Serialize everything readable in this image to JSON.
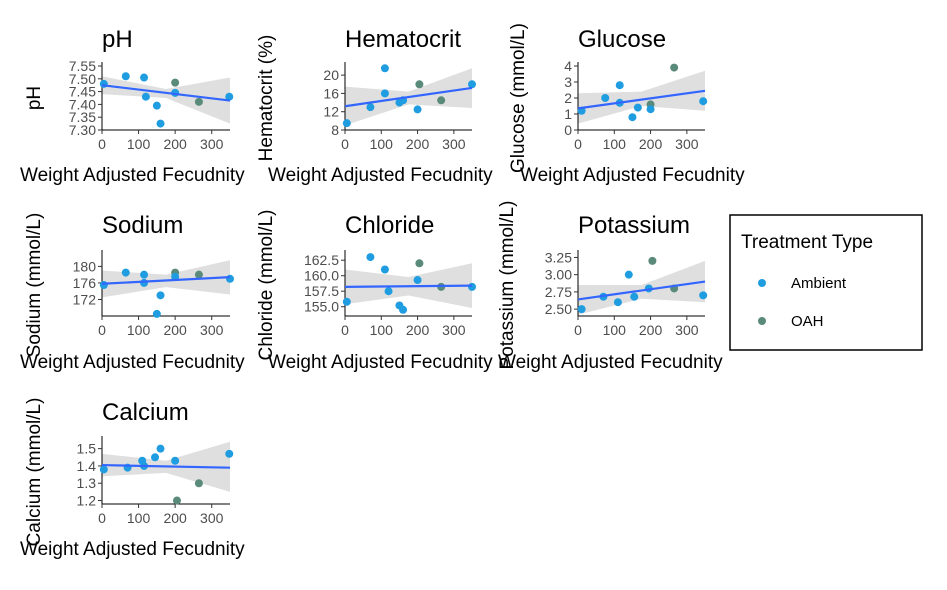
{
  "colors": {
    "Ambient": "#1f9de0",
    "OAH": "#5a8a7a",
    "fit": "#3366ff",
    "ci": "#d9d9d9"
  },
  "legend": {
    "title": "Treatment Type",
    "items": [
      {
        "label": "Ambient",
        "color": "#1f9de0"
      },
      {
        "label": "OAH",
        "color": "#5a8a7a"
      }
    ]
  },
  "chart_data": [
    {
      "type": "scatter",
      "title": "pH",
      "xlabel": "Weight Adjusted Fecudnity",
      "ylabel": "pH",
      "xlim": [
        0,
        350
      ],
      "xticks": [
        0,
        100,
        200,
        300
      ],
      "xtick_labels": [
        "0",
        "100",
        "200",
        "300"
      ],
      "ylim": [
        7.3,
        7.55
      ],
      "yticks": [
        7.3,
        7.35,
        7.4,
        7.45,
        7.5,
        7.55
      ],
      "ytick_labels": [
        "7.30",
        "7.35",
        "7.40",
        "7.45",
        "7.50",
        "7.55"
      ],
      "points": [
        {
          "x": 5,
          "y": 7.48,
          "group": "Ambient"
        },
        {
          "x": 65,
          "y": 7.51,
          "group": "Ambient"
        },
        {
          "x": 115,
          "y": 7.505,
          "group": "Ambient"
        },
        {
          "x": 120,
          "y": 7.43,
          "group": "Ambient"
        },
        {
          "x": 150,
          "y": 7.395,
          "group": "Ambient"
        },
        {
          "x": 160,
          "y": 7.325,
          "group": "Ambient"
        },
        {
          "x": 200,
          "y": 7.485,
          "group": "OAH"
        },
        {
          "x": 200,
          "y": 7.445,
          "group": "Ambient"
        },
        {
          "x": 265,
          "y": 7.41,
          "group": "OAH"
        },
        {
          "x": 348,
          "y": 7.43,
          "group": "Ambient"
        }
      ],
      "fit": [
        [
          0,
          7.475
        ],
        [
          350,
          7.415
        ]
      ],
      "ci_upper": [
        [
          0,
          7.51
        ],
        [
          175,
          7.46
        ],
        [
          350,
          7.505
        ]
      ],
      "ci_lower": [
        [
          0,
          7.44
        ],
        [
          175,
          7.425
        ],
        [
          350,
          7.325
        ]
      ]
    },
    {
      "type": "scatter",
      "title": "Hematocrit",
      "xlabel": "Weight Adjusted Fecudnity",
      "ylabel": "Hematocrit (%)",
      "xlim": [
        0,
        350
      ],
      "xticks": [
        0,
        100,
        200,
        300
      ],
      "xtick_labels": [
        "0",
        "100",
        "200",
        "300"
      ],
      "ylim": [
        8,
        22
      ],
      "yticks": [
        8,
        12,
        16,
        20
      ],
      "ytick_labels": [
        "8",
        "12",
        "16",
        "20"
      ],
      "points": [
        {
          "x": 5,
          "y": 9.5,
          "group": "Ambient"
        },
        {
          "x": 70,
          "y": 13,
          "group": "Ambient"
        },
        {
          "x": 110,
          "y": 21.5,
          "group": "Ambient"
        },
        {
          "x": 110,
          "y": 16,
          "group": "Ambient"
        },
        {
          "x": 150,
          "y": 14,
          "group": "Ambient"
        },
        {
          "x": 160,
          "y": 14.5,
          "group": "Ambient"
        },
        {
          "x": 205,
          "y": 18,
          "group": "OAH"
        },
        {
          "x": 200,
          "y": 12.5,
          "group": "Ambient"
        },
        {
          "x": 265,
          "y": 14.5,
          "group": "OAH"
        },
        {
          "x": 350,
          "y": 18,
          "group": "Ambient"
        }
      ],
      "fit": [
        [
          0,
          13.2
        ],
        [
          350,
          17.2
        ]
      ],
      "ci_upper": [
        [
          0,
          17.5
        ],
        [
          175,
          16.4
        ],
        [
          350,
          21.5
        ]
      ],
      "ci_lower": [
        [
          0,
          9
        ],
        [
          175,
          13.6
        ],
        [
          350,
          12.8
        ]
      ]
    },
    {
      "type": "scatter",
      "title": "Glucose",
      "xlabel": "Weight Adjusted Fecudnity",
      "ylabel": "Glucose (mmol/L)",
      "xlim": [
        0,
        350
      ],
      "xticks": [
        0,
        100,
        200,
        300
      ],
      "xtick_labels": [
        "0",
        "100",
        "200",
        "300"
      ],
      "ylim": [
        0,
        4
      ],
      "yticks": [
        0,
        1,
        2,
        3,
        4
      ],
      "ytick_labels": [
        "0",
        "1",
        "2",
        "3",
        "4"
      ],
      "points": [
        {
          "x": 10,
          "y": 1.2,
          "group": "Ambient"
        },
        {
          "x": 75,
          "y": 2.0,
          "group": "Ambient"
        },
        {
          "x": 115,
          "y": 2.8,
          "group": "Ambient"
        },
        {
          "x": 115,
          "y": 1.7,
          "group": "Ambient"
        },
        {
          "x": 150,
          "y": 0.8,
          "group": "Ambient"
        },
        {
          "x": 165,
          "y": 1.4,
          "group": "Ambient"
        },
        {
          "x": 200,
          "y": 1.6,
          "group": "OAH"
        },
        {
          "x": 200,
          "y": 1.3,
          "group": "Ambient"
        },
        {
          "x": 265,
          "y": 3.9,
          "group": "OAH"
        },
        {
          "x": 345,
          "y": 1.8,
          "group": "Ambient"
        }
      ],
      "fit": [
        [
          0,
          1.35
        ],
        [
          350,
          2.45
        ]
      ],
      "ci_upper": [
        [
          0,
          2.3
        ],
        [
          175,
          2.4
        ],
        [
          350,
          3.7
        ]
      ],
      "ci_lower": [
        [
          0,
          0.4
        ],
        [
          175,
          1.5
        ],
        [
          350,
          1.2
        ]
      ]
    },
    {
      "type": "scatter",
      "title": "Sodium",
      "xlabel": "Weight Adjusted Fecudnity",
      "ylabel": "Sodium (mmol/L)",
      "xlim": [
        0,
        350
      ],
      "xticks": [
        0,
        100,
        200,
        300
      ],
      "xtick_labels": [
        "0",
        "100",
        "200",
        "300"
      ],
      "ylim": [
        168,
        183
      ],
      "yticks": [
        172,
        176,
        180
      ],
      "ytick_labels": [
        "172",
        "176",
        "180"
      ],
      "points": [
        {
          "x": 5,
          "y": 175.5,
          "group": "Ambient"
        },
        {
          "x": 65,
          "y": 178.5,
          "group": "Ambient"
        },
        {
          "x": 115,
          "y": 178,
          "group": "Ambient"
        },
        {
          "x": 115,
          "y": 176,
          "group": "Ambient"
        },
        {
          "x": 150,
          "y": 168.5,
          "group": "Ambient"
        },
        {
          "x": 160,
          "y": 173,
          "group": "Ambient"
        },
        {
          "x": 200,
          "y": 178.5,
          "group": "OAH"
        },
        {
          "x": 200,
          "y": 177.5,
          "group": "Ambient"
        },
        {
          "x": 265,
          "y": 178,
          "group": "OAH"
        },
        {
          "x": 350,
          "y": 177,
          "group": "Ambient"
        }
      ],
      "fit": [
        [
          0,
          175.8
        ],
        [
          350,
          177.4
        ]
      ],
      "ci_upper": [
        [
          0,
          179
        ],
        [
          175,
          178
        ],
        [
          350,
          181.5
        ]
      ],
      "ci_lower": [
        [
          0,
          172.5
        ],
        [
          175,
          175
        ],
        [
          350,
          173.2
        ]
      ]
    },
    {
      "type": "scatter",
      "title": "Chloride",
      "xlabel": "Weight Adjusted Fecudnity",
      "ylabel": "Chloride (mmol/L)",
      "xlim": [
        0,
        350
      ],
      "xticks": [
        0,
        100,
        200,
        300
      ],
      "xtick_labels": [
        "0",
        "100",
        "200",
        "300"
      ],
      "ylim": [
        153.5,
        163.5
      ],
      "yticks": [
        155.0,
        157.5,
        160.0,
        162.5
      ],
      "ytick_labels": [
        "155.0",
        "157.5",
        "160.0",
        "162.5"
      ],
      "points": [
        {
          "x": 5,
          "y": 155.8,
          "group": "Ambient"
        },
        {
          "x": 70,
          "y": 163,
          "group": "Ambient"
        },
        {
          "x": 110,
          "y": 161,
          "group": "Ambient"
        },
        {
          "x": 120,
          "y": 157.5,
          "group": "Ambient"
        },
        {
          "x": 150,
          "y": 155.2,
          "group": "Ambient"
        },
        {
          "x": 160,
          "y": 154.5,
          "group": "Ambient"
        },
        {
          "x": 205,
          "y": 162,
          "group": "OAH"
        },
        {
          "x": 200,
          "y": 159.3,
          "group": "Ambient"
        },
        {
          "x": 265,
          "y": 158.2,
          "group": "OAH"
        },
        {
          "x": 350,
          "y": 158.2,
          "group": "Ambient"
        }
      ],
      "fit": [
        [
          0,
          158.2
        ],
        [
          350,
          158.4
        ]
      ],
      "ci_upper": [
        [
          0,
          161
        ],
        [
          175,
          159.8
        ],
        [
          350,
          162
        ]
      ],
      "ci_lower": [
        [
          0,
          155.4
        ],
        [
          175,
          156.8
        ],
        [
          350,
          154.8
        ]
      ]
    },
    {
      "type": "scatter",
      "title": "Potassium",
      "xlabel": "Weight Adjusted Fecudnity",
      "ylabel": "Potassium (mmol/L)",
      "xlim": [
        0,
        350
      ],
      "xticks": [
        0,
        100,
        200,
        300
      ],
      "xtick_labels": [
        "0",
        "100",
        "200",
        "300"
      ],
      "ylim": [
        2.4,
        3.3
      ],
      "yticks": [
        2.5,
        2.75,
        3.0,
        3.25
      ],
      "ytick_labels": [
        "2.50",
        "2.75",
        "3.00",
        "3.25"
      ],
      "points": [
        {
          "x": 10,
          "y": 2.5,
          "group": "Ambient"
        },
        {
          "x": 70,
          "y": 2.68,
          "group": "Ambient"
        },
        {
          "x": 110,
          "y": 2.6,
          "group": "Ambient"
        },
        {
          "x": 140,
          "y": 3.0,
          "group": "Ambient"
        },
        {
          "x": 155,
          "y": 2.68,
          "group": "Ambient"
        },
        {
          "x": 195,
          "y": 2.8,
          "group": "Ambient"
        },
        {
          "x": 205,
          "y": 3.2,
          "group": "OAH"
        },
        {
          "x": 265,
          "y": 2.8,
          "group": "OAH"
        },
        {
          "x": 345,
          "y": 2.7,
          "group": "Ambient"
        }
      ],
      "fit": [
        [
          0,
          2.64
        ],
        [
          350,
          2.9
        ]
      ],
      "ci_upper": [
        [
          0,
          2.85
        ],
        [
          175,
          2.85
        ],
        [
          350,
          3.2
        ]
      ],
      "ci_lower": [
        [
          0,
          2.42
        ],
        [
          175,
          2.65
        ],
        [
          350,
          2.6
        ]
      ]
    },
    {
      "type": "scatter",
      "title": "Calcium",
      "xlabel": "Weight Adjusted Fecudnity",
      "ylabel": "Calcium (mmol/L)",
      "xlim": [
        0,
        350
      ],
      "xticks": [
        0,
        100,
        200,
        300
      ],
      "xtick_labels": [
        "0",
        "100",
        "200",
        "300"
      ],
      "ylim": [
        1.18,
        1.55
      ],
      "yticks": [
        1.2,
        1.3,
        1.4,
        1.5
      ],
      "ytick_labels": [
        "1.2",
        "1.3",
        "1.4",
        "1.5"
      ],
      "points": [
        {
          "x": 5,
          "y": 1.38,
          "group": "Ambient"
        },
        {
          "x": 70,
          "y": 1.39,
          "group": "Ambient"
        },
        {
          "x": 110,
          "y": 1.43,
          "group": "Ambient"
        },
        {
          "x": 115,
          "y": 1.4,
          "group": "Ambient"
        },
        {
          "x": 145,
          "y": 1.45,
          "group": "Ambient"
        },
        {
          "x": 160,
          "y": 1.5,
          "group": "Ambient"
        },
        {
          "x": 200,
          "y": 1.43,
          "group": "Ambient"
        },
        {
          "x": 205,
          "y": 1.2,
          "group": "OAH"
        },
        {
          "x": 265,
          "y": 1.3,
          "group": "OAH"
        },
        {
          "x": 348,
          "y": 1.47,
          "group": "Ambient"
        }
      ],
      "fit": [
        [
          0,
          1.405
        ],
        [
          350,
          1.39
        ]
      ],
      "ci_upper": [
        [
          0,
          1.47
        ],
        [
          175,
          1.43
        ],
        [
          350,
          1.54
        ]
      ],
      "ci_lower": [
        [
          0,
          1.34
        ],
        [
          175,
          1.36
        ],
        [
          350,
          1.25
        ]
      ]
    }
  ]
}
